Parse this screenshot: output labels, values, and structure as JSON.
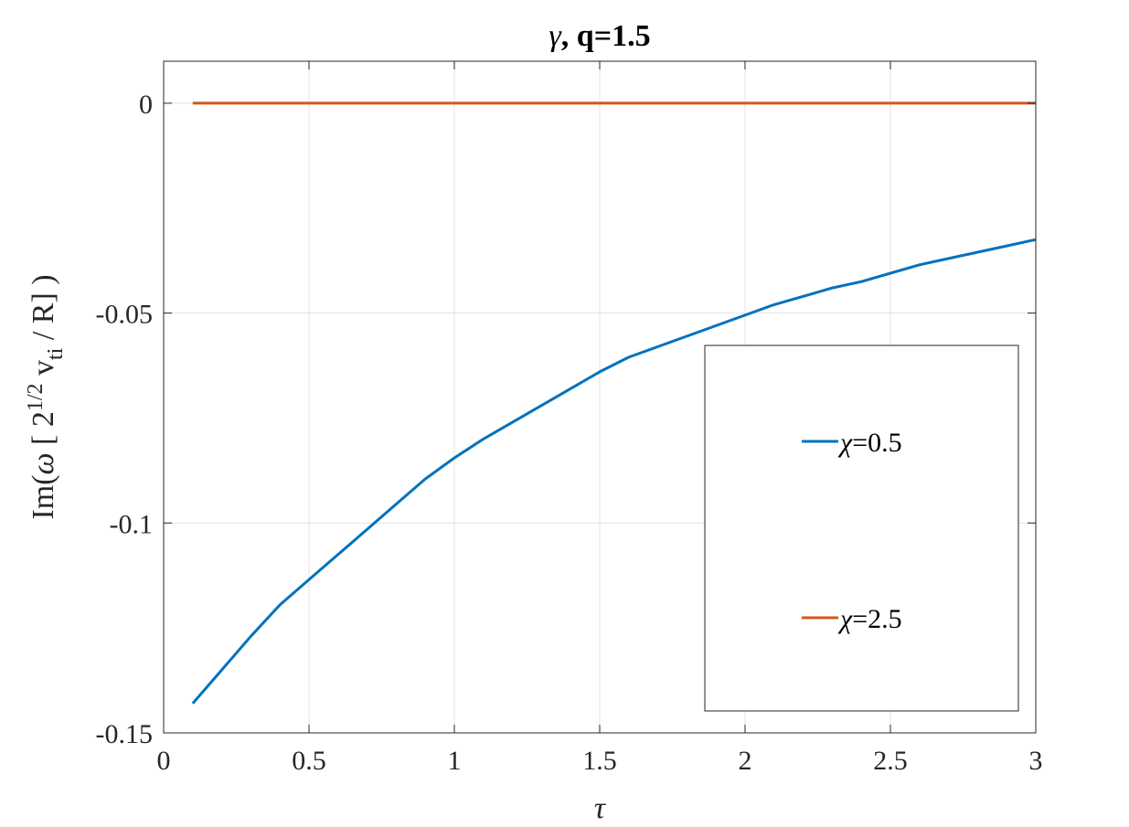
{
  "chart_data": {
    "type": "line",
    "title_greek": "γ",
    "title_rest": ", q=1.5",
    "xlabel": "τ",
    "ylabel": {
      "prefix": "Im(",
      "omega": "ω",
      "bracket_open": " [ 2",
      "exp": "1/2",
      "v": " v",
      "sub": "ti",
      "rest": " / R] )"
    },
    "xlim": [
      0,
      3
    ],
    "ylim": [
      -0.15,
      0.01
    ],
    "xticks": [
      0,
      0.5,
      1,
      1.5,
      2,
      2.5,
      3
    ],
    "xtick_labels": [
      "0",
      "0.5",
      "1",
      "1.5",
      "2",
      "2.5",
      "3"
    ],
    "yticks": [
      0,
      -0.05,
      -0.1,
      -0.15
    ],
    "ytick_labels": [
      "0",
      "-0.05",
      "-0.1",
      "-0.15"
    ],
    "grid": true,
    "legend_position": "bottom-right",
    "series": [
      {
        "name_greek": "χ",
        "name_rest": "=0.5",
        "color": "#0072BD",
        "x": [
          0.1,
          0.2,
          0.3,
          0.4,
          0.5,
          0.6,
          0.7,
          0.8,
          0.9,
          1.0,
          1.1,
          1.2,
          1.3,
          1.4,
          1.5,
          1.6,
          1.7,
          1.8,
          1.9,
          2.0,
          2.1,
          2.2,
          2.3,
          2.4,
          2.5,
          2.6,
          2.7,
          2.8,
          2.9,
          3.0
        ],
        "y": [
          -0.143,
          -0.135,
          -0.127,
          -0.1195,
          -0.1135,
          -0.1075,
          -0.1015,
          -0.0955,
          -0.0895,
          -0.0845,
          -0.08,
          -0.076,
          -0.072,
          -0.068,
          -0.064,
          -0.0605,
          -0.058,
          -0.0555,
          -0.053,
          -0.0505,
          -0.048,
          -0.046,
          -0.044,
          -0.0425,
          -0.0405,
          -0.0385,
          -0.037,
          -0.0355,
          -0.034,
          -0.0325
        ]
      },
      {
        "name_greek": "χ",
        "name_rest": "=2.5",
        "color": "#D95319",
        "x": [
          0.1,
          3.0
        ],
        "y": [
          0,
          0
        ]
      }
    ]
  }
}
